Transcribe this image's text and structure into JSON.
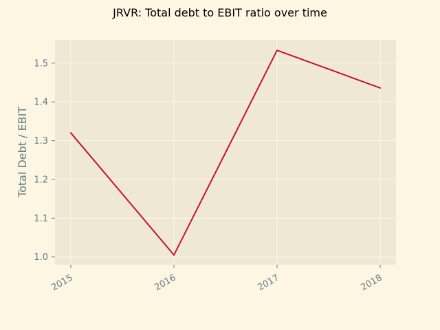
{
  "colors": {
    "figure_background": "#fdf6e3",
    "plot_background": "#eee8d5",
    "grid": "#fdf6e3",
    "tick_text": "#657b83",
    "line": "#c8102e"
  },
  "chart_data": {
    "type": "line",
    "title": "JRVR: Total debt to EBIT ratio over time",
    "xlabel": "",
    "ylabel": "Total Debt / EBIT",
    "x": [
      "2015",
      "2016",
      "2017",
      "2018"
    ],
    "series": [
      {
        "values": [
          1.32,
          1.005,
          1.533,
          1.436
        ]
      }
    ],
    "xlim": [
      "2015",
      "2018"
    ],
    "ylim": [
      0.98,
      1.56
    ],
    "yticks": [
      "1.0",
      "1.1",
      "1.2",
      "1.3",
      "1.4",
      "1.5"
    ],
    "grid": true,
    "legend": "none"
  }
}
